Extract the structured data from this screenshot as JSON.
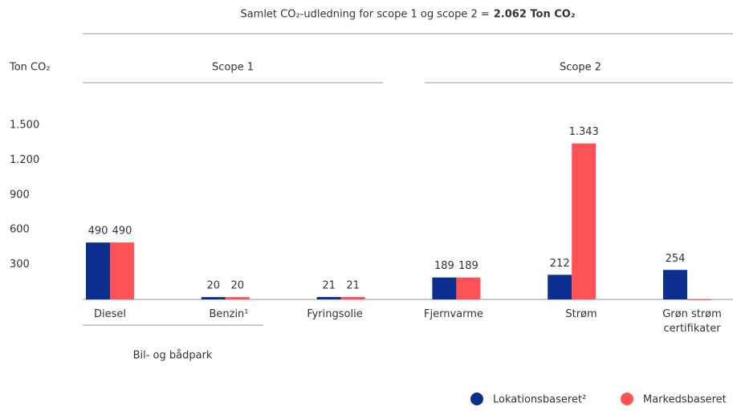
{
  "chart_data": {
    "type": "bar",
    "title": "Samlet CO₂-udledning for scope 1 og scope 2 =",
    "title_total": "2.062 Ton CO₂",
    "y_label": "Ton CO₂",
    "groups": [
      "Scope 1",
      "Scope 2"
    ],
    "subgroup": "Bil- og bådpark",
    "categories": [
      "Diesel",
      "Benzin¹",
      "Fyringsolie",
      "Fjernvarme",
      "Strøm",
      "Grøn strøm certifikater"
    ],
    "series": [
      {
        "name": "Lokationsbaseret²",
        "color": "#0b2f8e",
        "values": [
          490,
          20,
          21,
          189,
          212,
          254
        ]
      },
      {
        "name": "Markedsbaseret",
        "color": "#ff5257",
        "values": [
          490,
          20,
          21,
          189,
          1343,
          0
        ],
        "value_labels": [
          "490",
          "20",
          "21",
          "189",
          "1.343",
          null
        ]
      }
    ],
    "ylim": [
      0,
      1500
    ],
    "yticks": [
      300,
      600,
      900,
      {
        "value": 1200,
        "label": "1.200"
      },
      {
        "value": 1500,
        "label": "1.500"
      }
    ],
    "grid": false,
    "legend": "bottom-right"
  }
}
